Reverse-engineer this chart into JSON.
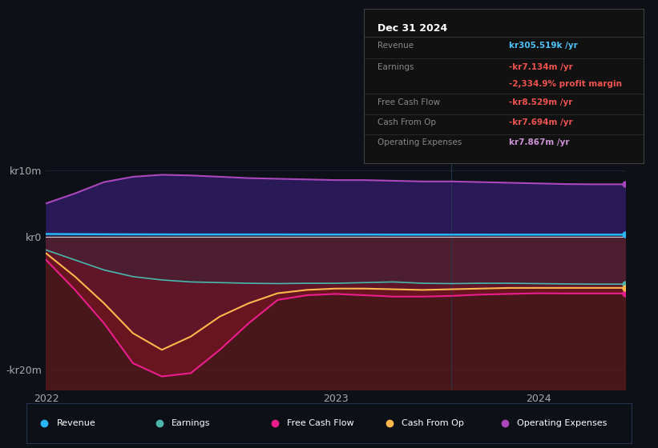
{
  "bg_color": "#0d1117",
  "tooltip_bg": "#111111",
  "tooltip_border": "#444444",
  "title": "Dec 31 2024",
  "tooltip_rows": [
    {
      "label": "Revenue",
      "value": "kr305.519k /yr",
      "label_color": "#888888",
      "value_color": "#4fc3f7"
    },
    {
      "label": "Earnings",
      "value": "-kr7.134m /yr",
      "label_color": "#888888",
      "value_color": "#ef5350"
    },
    {
      "label": "",
      "value": "-2,334.9% profit margin",
      "label_color": "#888888",
      "value_color": "#ef5350"
    },
    {
      "label": "Free Cash Flow",
      "value": "-kr8.529m /yr",
      "label_color": "#888888",
      "value_color": "#ef5350"
    },
    {
      "label": "Cash From Op",
      "value": "-kr7.694m /yr",
      "label_color": "#888888",
      "value_color": "#ef5350"
    },
    {
      "label": "Operating Expenses",
      "value": "kr7.867m /yr",
      "label_color": "#888888",
      "value_color": "#ce93d8"
    }
  ],
  "legend": [
    {
      "label": "Revenue",
      "color": "#29b6f6"
    },
    {
      "label": "Earnings",
      "color": "#4db6ac"
    },
    {
      "label": "Free Cash Flow",
      "color": "#e91e8c"
    },
    {
      "label": "Cash From Op",
      "color": "#ffb74d"
    },
    {
      "label": "Operating Expenses",
      "color": "#ab47bc"
    }
  ],
  "series": {
    "x": [
      0,
      0.15,
      0.3,
      0.45,
      0.6,
      0.75,
      0.9,
      1.05,
      1.2,
      1.35,
      1.5,
      1.65,
      1.8,
      1.95,
      2.1,
      2.25,
      2.4,
      2.55,
      2.7,
      2.85,
      3.0
    ],
    "operating_expenses": [
      5.0,
      6.5,
      8.2,
      9.0,
      9.3,
      9.2,
      9.0,
      8.8,
      8.7,
      8.6,
      8.5,
      8.5,
      8.4,
      8.3,
      8.3,
      8.2,
      8.1,
      8.0,
      7.9,
      7.87,
      7.87
    ],
    "revenue": [
      0.4,
      0.38,
      0.36,
      0.35,
      0.34,
      0.33,
      0.33,
      0.33,
      0.33,
      0.32,
      0.32,
      0.32,
      0.31,
      0.31,
      0.31,
      0.31,
      0.305,
      0.305,
      0.305,
      0.305,
      0.305
    ],
    "earnings": [
      -2.0,
      -3.5,
      -5.0,
      -6.0,
      -6.5,
      -6.8,
      -6.9,
      -7.0,
      -7.05,
      -7.0,
      -7.0,
      -6.9,
      -6.8,
      -7.0,
      -7.05,
      -7.0,
      -7.0,
      -7.05,
      -7.1,
      -7.134,
      -7.134
    ],
    "free_cash_flow": [
      -3.5,
      -8.0,
      -13.0,
      -19.0,
      -21.0,
      -20.5,
      -17.0,
      -13.0,
      -9.5,
      -8.8,
      -8.6,
      -8.8,
      -9.0,
      -9.0,
      -8.9,
      -8.7,
      -8.6,
      -8.5,
      -8.529,
      -8.529,
      -8.529
    ],
    "cash_from_op": [
      -2.5,
      -6.0,
      -10.0,
      -14.5,
      -17.0,
      -15.0,
      -12.0,
      -10.0,
      -8.5,
      -8.0,
      -7.8,
      -7.8,
      -7.9,
      -8.0,
      -7.9,
      -7.8,
      -7.7,
      -7.694,
      -7.694,
      -7.694,
      -7.694
    ]
  },
  "ylim": [
    -23,
    12
  ],
  "xlim": [
    0,
    3.0
  ],
  "vline_x": 2.1,
  "yticks": [
    10,
    0,
    -20
  ],
  "ytick_labels": [
    "kr10m",
    "kr0",
    "-kr20m"
  ],
  "xtick_positions": [
    0,
    1.5,
    2.55
  ],
  "xtick_labels": [
    "2022",
    "2023",
    "2024"
  ],
  "line_colors": {
    "operating_expenses": "#ab47bc",
    "revenue": "#29b6f6",
    "earnings": "#4db6ac",
    "free_cash_flow": "#e91e8c",
    "cash_from_op": "#ffb74d"
  },
  "fill_colors": {
    "operating_expenses": "#2d1b5e",
    "below_zero": "#5c1a1a",
    "earnings": "#1a3a3a",
    "free_cash_flow": "#7a1525",
    "cash_from_op": "#5a1530"
  }
}
